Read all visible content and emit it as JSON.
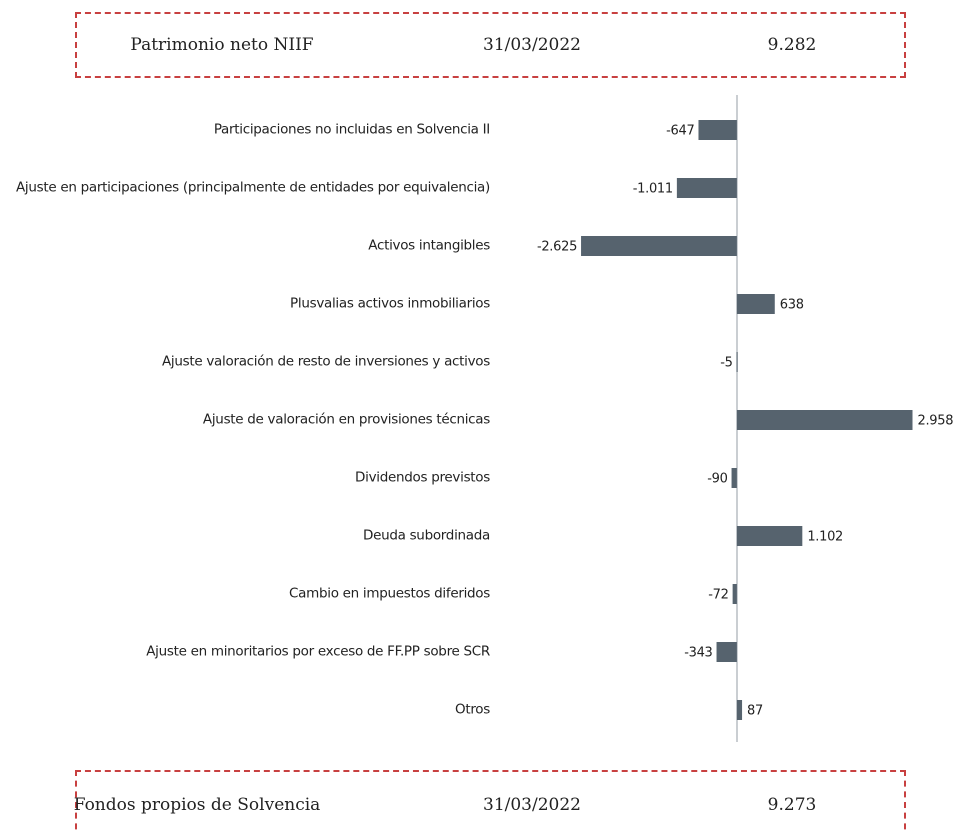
{
  "header_box": {
    "label": "Patrimonio neto NIIF",
    "date": "31/03/2022",
    "amount": "9.282"
  },
  "chart_data": {
    "type": "barh",
    "categories": [
      "Participaciones no incluidas en Solvencia II",
      "Ajuste en participaciones (principalmente de entidades por equivalencia)",
      "Activos intangibles",
      "Plusvalias activos inmobiliarios",
      "Ajuste valoración de resto de inversiones y activos",
      "Ajuste de valoración en provisiones técnicas",
      "Dividendos previstos",
      "Deuda subordinada",
      "Cambio en impuestos diferidos",
      "Ajuste en minoritarios por exceso de FF.PP sobre SCR",
      "Otros"
    ],
    "values": [
      -647,
      -1011,
      -2625,
      638,
      -5,
      2958,
      -90,
      1102,
      -72,
      -343,
      87
    ],
    "value_labels": [
      "-647",
      "-1.011",
      "-2.625",
      "638",
      "-5",
      "2.958",
      "-90",
      "1.102",
      "-72",
      "-343",
      "87"
    ],
    "color": "#56636e",
    "xlim": [
      -2700,
      3000
    ]
  },
  "footer_box": {
    "label": "Fondos propios de Solvencia",
    "date": "31/03/2022",
    "amount": "9.273"
  }
}
